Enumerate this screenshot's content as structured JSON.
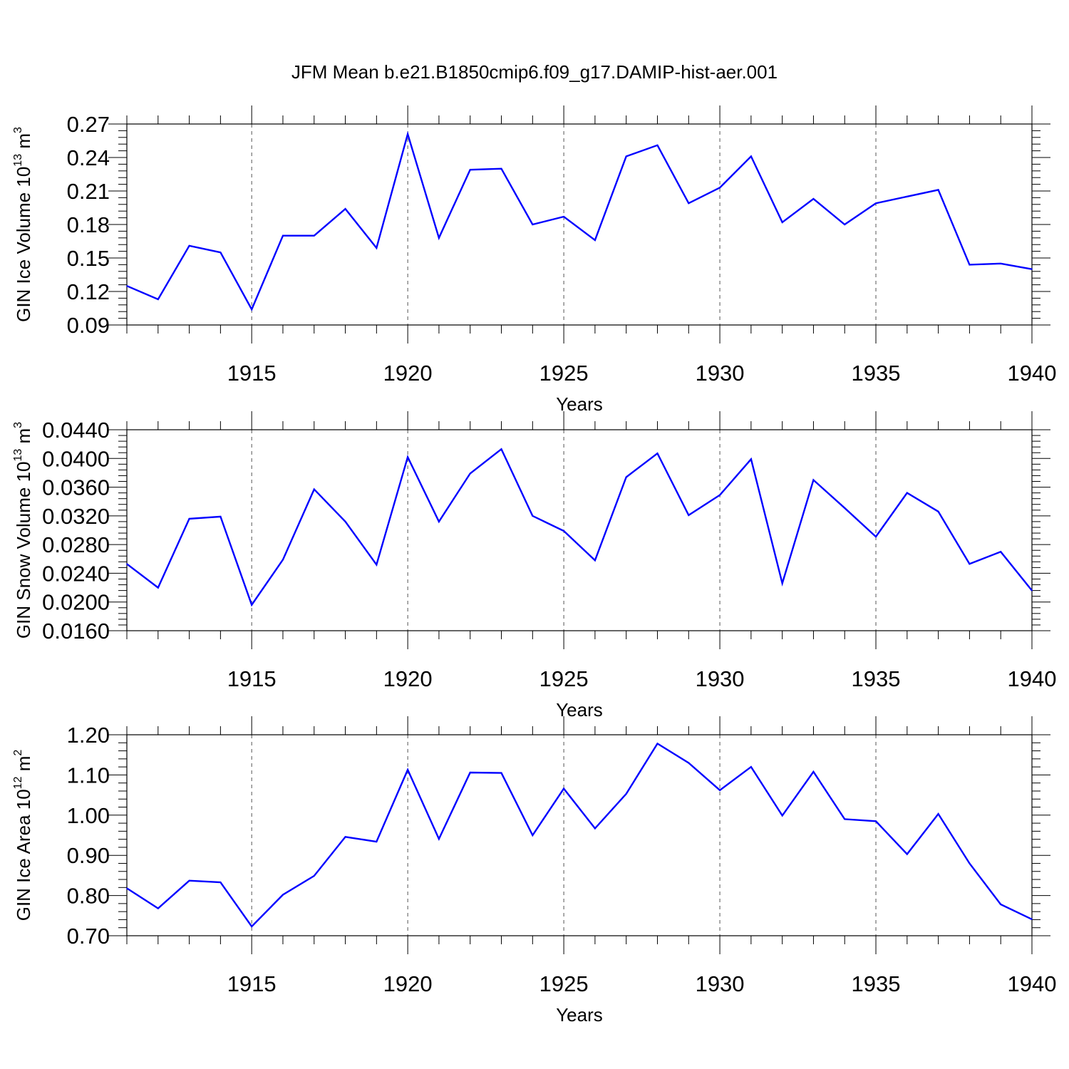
{
  "title": "JFM Mean b.e21.B1850cmip6.f09_g17.DAMIP-hist-aer.001",
  "colors": {
    "line": "#0000ff",
    "axis": "#000000",
    "grid": "#555555"
  },
  "chart_data": [
    {
      "type": "line",
      "ylabel": {
        "main": "GIN Ice Volume 10",
        "exp": "13",
        "unit": " m",
        "unit_exp": "3"
      },
      "xlabel": "Years",
      "xlim": [
        1911,
        1940
      ],
      "ylim": [
        0.09,
        0.27
      ],
      "yticks": [
        "0.09",
        "0.12",
        "0.15",
        "0.18",
        "0.21",
        "0.24",
        "0.27"
      ],
      "xticks": [
        "1915",
        "1920",
        "1925",
        "1930",
        "1935",
        "1940"
      ],
      "x": [
        1911,
        1912,
        1913,
        1914,
        1915,
        1916,
        1917,
        1918,
        1919,
        1920,
        1921,
        1922,
        1923,
        1924,
        1925,
        1926,
        1927,
        1928,
        1929,
        1930,
        1931,
        1932,
        1933,
        1934,
        1935,
        1936,
        1937,
        1938,
        1939,
        1940
      ],
      "series": [
        {
          "values": [
            0.125,
            0.113,
            0.161,
            0.155,
            0.104,
            0.17,
            0.17,
            0.194,
            0.159,
            0.261,
            0.168,
            0.229,
            0.23,
            0.18,
            0.187,
            0.166,
            0.241,
            0.251,
            0.199,
            0.213,
            0.241,
            0.182,
            0.203,
            0.18,
            0.199,
            0.205,
            0.211,
            0.144,
            0.145,
            0.14
          ]
        }
      ]
    },
    {
      "type": "line",
      "ylabel": {
        "main": "GIN Snow Volume 10",
        "exp": "13",
        "unit": " m",
        "unit_exp": "3"
      },
      "xlabel": "Years",
      "xlim": [
        1911,
        1940
      ],
      "ylim": [
        0.016,
        0.044
      ],
      "yticks": [
        "0.0160",
        "0.0200",
        "0.0240",
        "0.0280",
        "0.0320",
        "0.0360",
        "0.0400",
        "0.0440"
      ],
      "xticks": [
        "1915",
        "1920",
        "1925",
        "1930",
        "1935",
        "1940"
      ],
      "x": [
        1911,
        1912,
        1913,
        1914,
        1915,
        1916,
        1917,
        1918,
        1919,
        1920,
        1921,
        1922,
        1923,
        1924,
        1925,
        1926,
        1927,
        1928,
        1929,
        1930,
        1931,
        1932,
        1933,
        1934,
        1935,
        1936,
        1937,
        1938,
        1939,
        1940
      ],
      "series": [
        {
          "values": [
            0.0253,
            0.022,
            0.0316,
            0.0319,
            0.0196,
            0.0259,
            0.0357,
            0.0312,
            0.0252,
            0.0402,
            0.0312,
            0.0379,
            0.0413,
            0.032,
            0.0299,
            0.0258,
            0.0374,
            0.0407,
            0.0321,
            0.0349,
            0.0399,
            0.0226,
            0.037,
            0.0331,
            0.0291,
            0.0352,
            0.0326,
            0.0253,
            0.027,
            0.0216
          ]
        }
      ]
    },
    {
      "type": "line",
      "ylabel": {
        "main": "GIN Ice Area 10",
        "exp": "12",
        "unit": " m",
        "unit_exp": "2"
      },
      "xlabel": "Years",
      "xlim": [
        1911,
        1940
      ],
      "ylim": [
        0.7,
        1.2
      ],
      "yticks": [
        "0.70",
        "0.80",
        "0.90",
        "1.00",
        "1.10",
        "1.20"
      ],
      "xticks": [
        "1915",
        "1920",
        "1925",
        "1930",
        "1935",
        "1940"
      ],
      "x": [
        1911,
        1912,
        1913,
        1914,
        1915,
        1916,
        1917,
        1918,
        1919,
        1920,
        1921,
        1922,
        1923,
        1924,
        1925,
        1926,
        1927,
        1928,
        1929,
        1930,
        1931,
        1932,
        1933,
        1934,
        1935,
        1936,
        1937,
        1938,
        1939,
        1940
      ],
      "series": [
        {
          "values": [
            0.818,
            0.768,
            0.837,
            0.833,
            0.723,
            0.802,
            0.849,
            0.946,
            0.934,
            1.113,
            0.941,
            1.106,
            1.105,
            0.95,
            1.066,
            0.967,
            1.053,
            1.178,
            1.13,
            1.062,
            1.12,
            0.999,
            1.108,
            0.99,
            0.985,
            0.903,
            1.003,
            0.88,
            0.778,
            0.741
          ]
        }
      ]
    }
  ]
}
